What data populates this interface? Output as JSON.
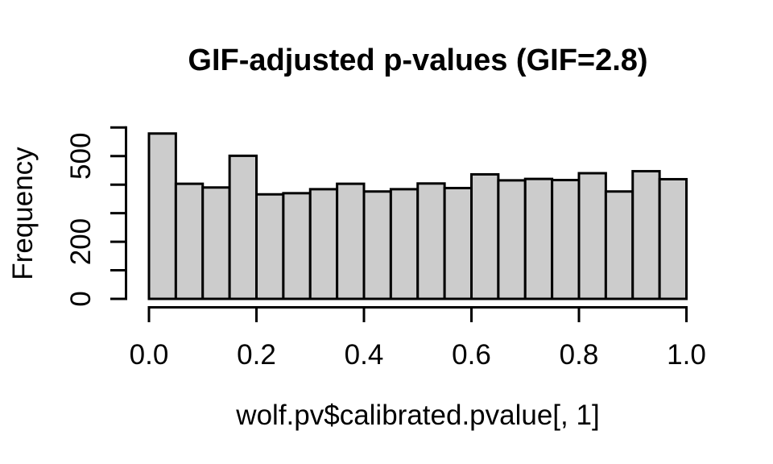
{
  "chart_data": {
    "type": "bar",
    "subtype": "histogram",
    "title": "GIF-adjusted p-values (GIF=2.8)",
    "xlabel": "wolf.pv$calibrated.pvalue[, 1]",
    "ylabel": "Frequency",
    "xlim": [
      0,
      1
    ],
    "ylim": [
      0,
      600
    ],
    "grid": false,
    "legend_position": "none",
    "bin_start": 0,
    "bin_width": 0.05,
    "frequencies": [
      579,
      403,
      390,
      501,
      366,
      370,
      384,
      403,
      376,
      384,
      404,
      388,
      436,
      415,
      420,
      416,
      440,
      376,
      447,
      419
    ],
    "x_ticks": [
      {
        "v": 0.0,
        "label": "0.0"
      },
      {
        "v": 0.2,
        "label": "0.2"
      },
      {
        "v": 0.4,
        "label": "0.4"
      },
      {
        "v": 0.6,
        "label": "0.6"
      },
      {
        "v": 0.8,
        "label": "0.8"
      },
      {
        "v": 1.0,
        "label": "1.0"
      }
    ],
    "y_ticks": [
      {
        "v": 0,
        "label": "0"
      },
      {
        "v": 100,
        "label": ""
      },
      {
        "v": 200,
        "label": "200"
      },
      {
        "v": 300,
        "label": ""
      },
      {
        "v": 400,
        "label": ""
      },
      {
        "v": 500,
        "label": "500"
      },
      {
        "v": 600,
        "label": ""
      }
    ],
    "colors": {
      "bar_fill": "#cccccc",
      "bar_stroke": "#000000",
      "axis": "#000000",
      "text": "#000000",
      "background": "#ffffff"
    }
  }
}
